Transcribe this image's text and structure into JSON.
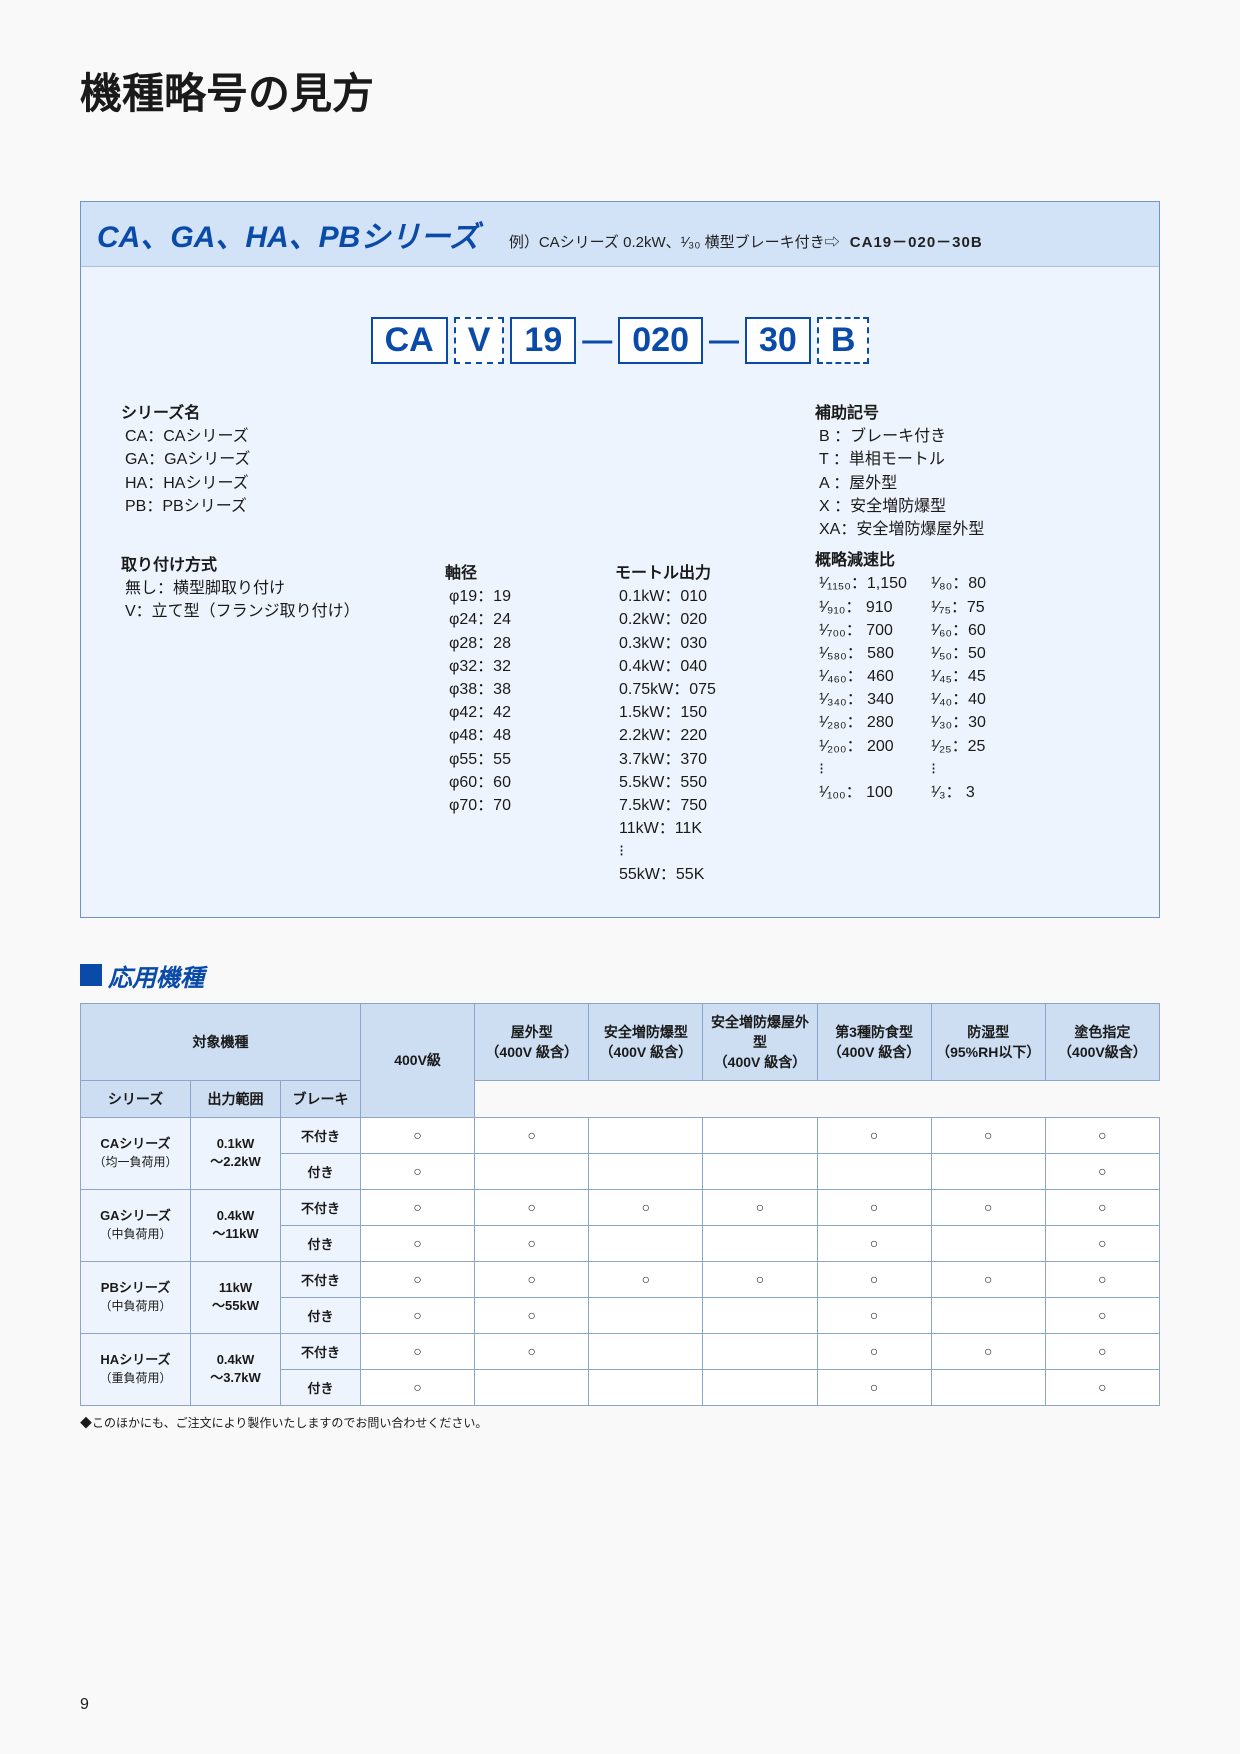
{
  "title": "機種略号の見方",
  "series_header": {
    "title": "CA、GA、HA、PBシリーズ",
    "example_prefix": "例）CAシリーズ 0.2kW、¹⁄₃₀ 横型ブレーキ付き⇨",
    "example_code": "CA19－020－30B"
  },
  "code": {
    "p1": "CA",
    "p2": "V",
    "p3": "19",
    "p4": "020",
    "p5": "30",
    "p6": "B"
  },
  "series_name": {
    "title": "シリーズ名",
    "items": [
      "CA：CAシリーズ",
      "GA：GAシリーズ",
      "HA：HAシリーズ",
      "PB：PBシリーズ"
    ]
  },
  "mounting": {
    "title": "取り付け方式",
    "items": [
      "無し：横型脚取り付け",
      "V：立て型（フランジ取り付け）"
    ]
  },
  "shaft": {
    "title": "軸径",
    "items": [
      "φ19：19",
      "φ24：24",
      "φ28：28",
      "φ32：32",
      "φ38：38",
      "φ42：42",
      "φ48：48",
      "φ55：55",
      "φ60：60",
      "φ70：70"
    ]
  },
  "motor": {
    "title": "モートル出力",
    "items": [
      "0.1kW：010",
      "0.2kW：020",
      "0.3kW：030",
      "0.4kW：040",
      "0.75kW：075",
      "1.5kW：150",
      "2.2kW：220",
      "3.7kW：370",
      "5.5kW：550",
      "7.5kW：750",
      "11kW：11K",
      "⁝",
      "55kW：55K"
    ]
  },
  "aux": {
    "title": "補助記号",
    "items": [
      "B ：ブレーキ付き",
      "T ：単相モートル",
      "A ：屋外型",
      "X ：安全増防爆型",
      "XA：安全増防爆屋外型"
    ]
  },
  "ratio": {
    "title": "概略減速比",
    "colA": [
      "¹⁄₁₁₅₀：1,150",
      "¹⁄₉₁₀： 910",
      "¹⁄₇₀₀： 700",
      "¹⁄₅₈₀： 580",
      "¹⁄₄₆₀： 460",
      "¹⁄₃₄₀： 340",
      "¹⁄₂₈₀： 280",
      "¹⁄₂₀₀： 200",
      "⁝",
      "¹⁄₁₀₀： 100"
    ],
    "colB": [
      "¹⁄₈₀：80",
      "¹⁄₇₅：75",
      "¹⁄₆₀：60",
      "¹⁄₅₀：50",
      "¹⁄₄₅：45",
      "¹⁄₄₀：40",
      "¹⁄₃₀：30",
      "¹⁄₂₅：25",
      "⁝",
      "¹⁄₃： 3"
    ]
  },
  "apps": {
    "section_title": "応用機種",
    "head": {
      "target": "対象機種",
      "series": "シリーズ",
      "output": "出力範囲",
      "brake": "ブレーキ",
      "c400": "400V級",
      "outdoor": "屋外型",
      "outdoor_sub": "（400V 級含）",
      "exproof": "安全増防爆型",
      "exproof_sub": "（400V 級含）",
      "exout": "安全増防爆屋外型",
      "exout_sub": "（400V 級含）",
      "food": "第3種防食型",
      "food_sub": "（400V 級含）",
      "humid": "防湿型",
      "humid_sub": "（95%RH以下）",
      "paint": "塗色指定",
      "paint_sub": "（400V級含）"
    },
    "rows": [
      {
        "series": "CAシリーズ",
        "sub": "（均一負荷用）",
        "range": "0.1kW\n～2.2kW",
        "r": [
          {
            "brake": "不付き",
            "v": [
              "○",
              "○",
              "",
              "",
              "○",
              "○",
              "○"
            ]
          },
          {
            "brake": "付き",
            "v": [
              "○",
              "",
              "",
              "",
              "",
              "",
              "○"
            ]
          }
        ]
      },
      {
        "series": "GAシリーズ",
        "sub": "（中負荷用）",
        "range": "0.4kW\n～11kW",
        "r": [
          {
            "brake": "不付き",
            "v": [
              "○",
              "○",
              "○",
              "○",
              "○",
              "○",
              "○"
            ]
          },
          {
            "brake": "付き",
            "v": [
              "○",
              "○",
              "",
              "",
              "○",
              "",
              "○"
            ]
          }
        ]
      },
      {
        "series": "PBシリーズ",
        "sub": "（中負荷用）",
        "range": "11kW\n～55kW",
        "r": [
          {
            "brake": "不付き",
            "v": [
              "○",
              "○",
              "○",
              "○",
              "○",
              "○",
              "○"
            ]
          },
          {
            "brake": "付き",
            "v": [
              "○",
              "○",
              "",
              "",
              "○",
              "",
              "○"
            ]
          }
        ]
      },
      {
        "series": "HAシリーズ",
        "sub": "（重負荷用）",
        "range": "0.4kW\n～3.7kW",
        "r": [
          {
            "brake": "不付き",
            "v": [
              "○",
              "○",
              "",
              "",
              "○",
              "○",
              "○"
            ]
          },
          {
            "brake": "付き",
            "v": [
              "○",
              "",
              "",
              "",
              "○",
              "",
              "○"
            ]
          }
        ]
      }
    ],
    "note": "◆このほかにも、ご注文により製作いたしますのでお問い合わせください。",
    "page": "9"
  }
}
